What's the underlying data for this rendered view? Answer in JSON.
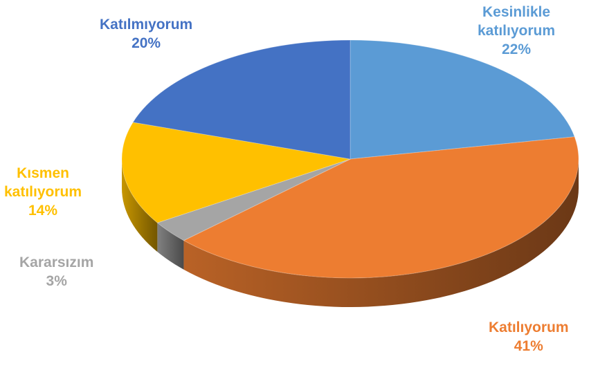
{
  "chart_data": {
    "type": "pie",
    "style": "3d",
    "slices": [
      {
        "label": "Kesinlikle katılıyorum",
        "label_lines": [
          "Kesinlikle",
          "katılıyorum"
        ],
        "value": 22,
        "percent_label": "22%",
        "color": "#5b9bd5"
      },
      {
        "label": "Katılıyorum",
        "label_lines": [
          "Katılıyorum"
        ],
        "value": 41,
        "percent_label": "41%",
        "color": "#ed7d31"
      },
      {
        "label": "Kararsızım",
        "label_lines": [
          "Kararsızım"
        ],
        "value": 3,
        "percent_label": "3%",
        "color": "#a5a5a5"
      },
      {
        "label": "Kısmen katılıyorum",
        "label_lines": [
          "Kısmen",
          "katılıyorum"
        ],
        "value": 14,
        "percent_label": "14%",
        "color": "#ffc000"
      },
      {
        "label": "Katılmıyorum",
        "label_lines": [
          "Katılmıyorum"
        ],
        "value": 20,
        "percent_label": "20%",
        "color": "#4472c4"
      }
    ],
    "legend": "none",
    "data_labels": "outside"
  }
}
